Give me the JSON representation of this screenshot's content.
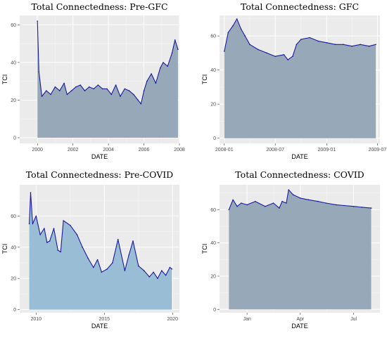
{
  "chart_data": [
    {
      "type": "area",
      "title": "Total Connectedness: Pre-GFC",
      "xlabel": "DATE",
      "ylabel": "TCI",
      "x_ticks": [
        "2000",
        "2002",
        "2004",
        "2006",
        "2008"
      ],
      "y_ticks": [
        "0",
        "20",
        "40",
        "60"
      ],
      "ylim": [
        -3,
        65
      ],
      "fill_color": "#97a9b8",
      "line_color": "#1a1aa0",
      "grid": true,
      "x": [
        "2000-01",
        "2000-02",
        "2000-04",
        "2000-07",
        "2000-10",
        "2001-01",
        "2001-04",
        "2001-07",
        "2001-09",
        "2001-12",
        "2002-03",
        "2002-06",
        "2002-09",
        "2002-12",
        "2003-03",
        "2003-06",
        "2003-09",
        "2003-12",
        "2004-03",
        "2004-06",
        "2004-09",
        "2004-12",
        "2005-03",
        "2005-06",
        "2005-09",
        "2005-11",
        "2006-01",
        "2006-03",
        "2006-06",
        "2006-09",
        "2006-12",
        "2007-02",
        "2007-05",
        "2007-08",
        "2007-10",
        "2007-12"
      ],
      "values": [
        62,
        35,
        22,
        25,
        23,
        27,
        25,
        29,
        23,
        25,
        27,
        28,
        25,
        27,
        26,
        28,
        26,
        26,
        23,
        28,
        22,
        26,
        25,
        23,
        20,
        18,
        25,
        30,
        34,
        29,
        37,
        40,
        38,
        45,
        52,
        47
      ]
    },
    {
      "type": "area",
      "title": "Total Connectedness: GFC",
      "xlabel": "DATE",
      "ylabel": "TCI",
      "x_ticks": [
        "2008-01",
        "2008-07",
        "2009-01",
        "2009-07"
      ],
      "y_ticks": [
        "0",
        "20",
        "40",
        "60"
      ],
      "ylim": [
        -3,
        72
      ],
      "fill_color": "#97a9b8",
      "line_color": "#1a1aa0",
      "grid": true,
      "x": [
        "2008-01-01",
        "2008-01-15",
        "2008-02-01",
        "2008-02-15",
        "2008-03-01",
        "2008-03-15",
        "2008-04-01",
        "2008-05-01",
        "2008-06-01",
        "2008-07-01",
        "2008-08-01",
        "2008-08-15",
        "2008-09-01",
        "2008-09-15",
        "2008-10-01",
        "2008-11-01",
        "2008-12-01",
        "2009-01-01",
        "2009-02-01",
        "2009-03-01",
        "2009-04-01",
        "2009-05-01",
        "2009-06-01",
        "2009-06-25"
      ],
      "values": [
        51,
        62,
        66,
        70,
        64,
        60,
        55,
        52,
        50,
        48,
        49,
        46,
        48,
        55,
        58,
        59,
        57,
        56,
        55,
        55,
        54,
        55,
        54,
        55
      ]
    },
    {
      "type": "area",
      "title": "Total Connectedness: Pre-COVID",
      "xlabel": "DATE",
      "ylabel": "TCI",
      "x_ticks": [
        "2010",
        "2015",
        "2020"
      ],
      "y_ticks": [
        "0",
        "20",
        "40",
        "60"
      ],
      "ylim": [
        -2,
        80
      ],
      "fill_color": "#98bdd5",
      "line_color": "#1a1aa0",
      "grid": true,
      "x": [
        "2009.5",
        "2009.6",
        "2009.75",
        "2010.0",
        "2010.3",
        "2010.6",
        "2010.8",
        "2011.0",
        "2011.3",
        "2011.6",
        "2011.8",
        "2012.0",
        "2012.5",
        "2013.0",
        "2013.4",
        "2013.8",
        "2014.2",
        "2014.5",
        "2014.8",
        "2015.2",
        "2015.6",
        "2016.0",
        "2016.5",
        "2016.8",
        "2017.1",
        "2017.5",
        "2017.9",
        "2018.3",
        "2018.6",
        "2018.9",
        "2019.2",
        "2019.5",
        "2019.8",
        "2019.95"
      ],
      "values": [
        55,
        75,
        55,
        60,
        48,
        52,
        43,
        44,
        52,
        38,
        37,
        57,
        54,
        48,
        40,
        33,
        27,
        32,
        24,
        26,
        30,
        45,
        25,
        35,
        44,
        28,
        25,
        21,
        24,
        20,
        25,
        22,
        27,
        26
      ]
    },
    {
      "type": "area",
      "title": "Total Connectedness: COVID",
      "xlabel": "DATE",
      "ylabel": "TCI",
      "x_ticks": [
        "Jan",
        "Apr",
        "Jul"
      ],
      "y_ticks": [
        "0",
        "20",
        "40",
        "60"
      ],
      "ylim": [
        -2,
        75
      ],
      "fill_color": "#97a9b8",
      "line_color": "#1a1aa0",
      "grid": true,
      "x": [
        "2019-12-01",
        "2019-12-08",
        "2019-12-15",
        "2019-12-22",
        "2020-01-01",
        "2020-01-15",
        "2020-02-01",
        "2020-02-15",
        "2020-02-25",
        "2020-03-01",
        "2020-03-08",
        "2020-03-12",
        "2020-03-20",
        "2020-04-01",
        "2020-04-15",
        "2020-05-01",
        "2020-05-15",
        "2020-06-01",
        "2020-06-15",
        "2020-07-01",
        "2020-07-15",
        "2020-07-31"
      ],
      "values": [
        60,
        66,
        62,
        64,
        63,
        65,
        62,
        64,
        61,
        65,
        64,
        72,
        69,
        67,
        66,
        65,
        64,
        63,
        62.5,
        62,
        61.5,
        61
      ]
    }
  ]
}
